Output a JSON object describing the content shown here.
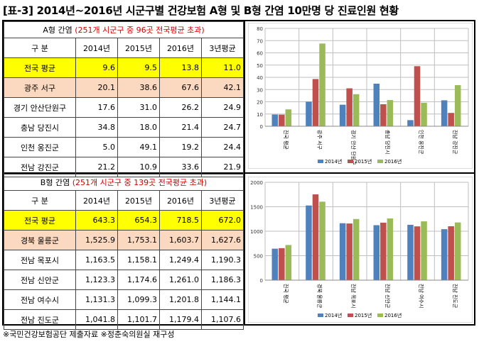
{
  "title": "[표-3] 2014년~2016년 시군구별 건강보험 A형 및 B형 간염 10만명 당 진료인원 현황",
  "tableA": {
    "caption_prefix": "A형 간염",
    "caption_note": "(251개 시군구 중 96곳 전국평균 초과)",
    "headers": [
      "구 분",
      "2014년",
      "2015년",
      "2016년",
      "3년평균"
    ],
    "rows": [
      {
        "label": "전국 평균",
        "cells": [
          "9.6",
          "9.5",
          "13.8",
          "11.0"
        ]
      },
      {
        "label": "광주 서구",
        "cells": [
          "20.1",
          "38.6",
          "67.6",
          "42.1"
        ]
      },
      {
        "label": "경기 안산단원구",
        "cells": [
          "17.6",
          "31.0",
          "26.2",
          "24.9"
        ]
      },
      {
        "label": "충남 당진시",
        "cells": [
          "34.8",
          "18.0",
          "21.4",
          "24.7"
        ]
      },
      {
        "label": "인천 옹진군",
        "cells": [
          "5.0",
          "49.1",
          "19.2",
          "24.4"
        ]
      },
      {
        "label": "전남 강진군",
        "cells": [
          "21.2",
          "10.9",
          "33.6",
          "21.9"
        ]
      }
    ]
  },
  "tableB": {
    "caption_prefix": "B형 간염",
    "caption_note": "(251개 시군구 중 139곳 전국평균 초과)",
    "headers": [
      "구 분",
      "2014년",
      "2015년",
      "2016년",
      "3년평균"
    ],
    "rows": [
      {
        "label": "전국 평균",
        "cells": [
          "643.3",
          "654.3",
          "718.5",
          "672.0"
        ]
      },
      {
        "label": "경북 울릉군",
        "cells": [
          "1,525.9",
          "1,753.1",
          "1,603.7",
          "1,627.6"
        ]
      },
      {
        "label": "전남 목포시",
        "cells": [
          "1,163.5",
          "1,158.1",
          "1,249.4",
          "1,190.3"
        ]
      },
      {
        "label": "전남 신안군",
        "cells": [
          "1,123.3",
          "1,174.6",
          "1,261.0",
          "1,186.3"
        ]
      },
      {
        "label": "전남 여수시",
        "cells": [
          "1,131.3",
          "1,099.3",
          "1,201.8",
          "1,144.1"
        ]
      },
      {
        "label": "전남 진도군",
        "cells": [
          "1,041.8",
          "1,101.7",
          "1,179.4",
          "1,107.6"
        ]
      }
    ]
  },
  "footnote": "※국민건강보험공단 제출자료 ※정춘숙의원실 재구성",
  "colors": {
    "s2014": "#4f81bd",
    "s2015": "#c0504d",
    "s2016": "#9bbb59",
    "avg_row": "#ffff00",
    "highlight_row": "#fbd9c0",
    "red_text": "#d00000"
  },
  "chart_data": [
    {
      "type": "bar",
      "categories": [
        "전국 평균",
        "광주 서구",
        "경기 안산 단원구",
        "충남 당진시",
        "인천 옹진군",
        "전남 강진군"
      ],
      "series": [
        {
          "name": "2014년",
          "values": [
            9.6,
            20.1,
            17.6,
            34.8,
            5.0,
            21.2
          ]
        },
        {
          "name": "2015년",
          "values": [
            9.5,
            38.6,
            31.0,
            18.0,
            49.1,
            10.9
          ]
        },
        {
          "name": "2016년",
          "values": [
            13.8,
            67.6,
            26.2,
            21.4,
            19.2,
            33.6
          ]
        }
      ],
      "ylim": [
        0,
        80
      ],
      "yticks": [
        "0",
        "10",
        "20",
        "30",
        "40",
        "50",
        "60",
        "70",
        "80"
      ],
      "grid": true,
      "legend": "bottom"
    },
    {
      "type": "bar",
      "categories": [
        "전국 평균",
        "경북 울릉군",
        "전남 목포시",
        "전남 신안군",
        "전남 여수시",
        "전남 진도군"
      ],
      "series": [
        {
          "name": "2014년",
          "values": [
            643.3,
            1525.9,
            1163.5,
            1123.3,
            1131.3,
            1041.8
          ]
        },
        {
          "name": "2015년",
          "values": [
            654.3,
            1753.1,
            1158.1,
            1174.6,
            1099.3,
            1101.7
          ]
        },
        {
          "name": "2016년",
          "values": [
            718.5,
            1603.7,
            1249.4,
            1261.0,
            1201.8,
            1179.4
          ]
        }
      ],
      "ylim": [
        0,
        2000
      ],
      "yticks": [
        "0",
        "500",
        "1000",
        "1500",
        "2000"
      ],
      "grid": true,
      "legend": "bottom"
    }
  ]
}
